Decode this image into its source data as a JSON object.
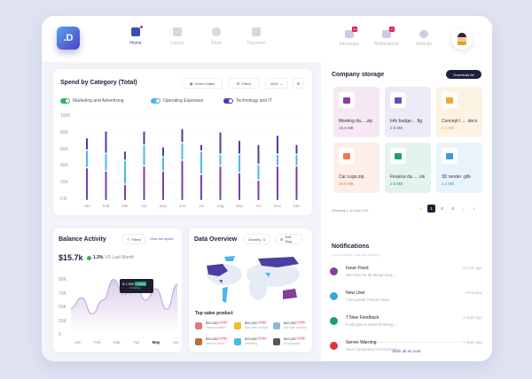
{
  "app": {
    "logo": ".D"
  },
  "nav": [
    {
      "label": "Home",
      "active": true
    },
    {
      "label": "Layout"
    },
    {
      "label": "Chart"
    },
    {
      "label": "Payment"
    }
  ],
  "right_nav": [
    {
      "label": "Messages",
      "badge": "10"
    },
    {
      "label": "Notifications",
      "badge": "2"
    },
    {
      "label": "Settings"
    }
  ],
  "spend": {
    "title": "Spend by Category (Total)",
    "select_dates": "Select Dates",
    "filters": "Filters",
    "year": "2026"
  },
  "chart_data": {
    "type": "bar",
    "title": "Spend by Category (Total)",
    "categories": [
      "Jan",
      "Feb",
      "Mar",
      "Apr",
      "May",
      "Jun",
      "Jul",
      "Aug",
      "Sep",
      "Act",
      "Nov",
      "Dec"
    ],
    "yticks": [
      "100K",
      "80K",
      "60K",
      "40K",
      "20K",
      "0 K"
    ],
    "ylim": [
      0,
      100
    ],
    "series": [
      {
        "name": "Marketing and Advertising",
        "color": "#7a3ea8",
        "legend_color": "#2fb35a",
        "values": [
          38,
          34,
          18,
          40,
          34,
          47,
          30,
          40,
          32,
          23,
          40,
          40
        ]
      },
      {
        "name": "Operating Expenses",
        "color": "#4ab8e8",
        "legend_color": "#4ab8e8",
        "values": [
          21,
          21,
          29,
          25,
          17,
          21,
          28,
          14,
          22,
          19,
          14,
          14
        ]
      },
      {
        "name": "Technology and IT",
        "color": "#4b3fa3",
        "legend_color": "#4b3fa3",
        "values": [
          15,
          27,
          11,
          17,
          12,
          17,
          8,
          27,
          17,
          24,
          23,
          12
        ]
      }
    ]
  },
  "balance": {
    "title": "Balance Activity",
    "filters": "Filters",
    "report": "View full report",
    "value": "$15.7k",
    "change": "1.3%",
    "compare": "VS Last Month",
    "tooltip_value": "$ 1,500",
    "tooltip_tag": "+12%",
    "tooltip_sub": "profit/day",
    "yticks": [
      "90K",
      "70K",
      "60K",
      "50K",
      "0"
    ],
    "xticks": [
      "Jan",
      "Feb",
      "Mar",
      "Apr",
      "May",
      "Jun"
    ],
    "active_month": "May",
    "line_values": [
      63,
      72,
      58,
      70,
      88,
      75,
      86,
      70,
      80,
      62,
      84
    ]
  },
  "overview": {
    "title": "Data Overview",
    "period": "Monthly",
    "edit": "Edit Map",
    "top_title": "Top sales product",
    "products": [
      {
        "value": "$10,000",
        "tag": "+1.3%",
        "name": "Transportation",
        "color": "#e07b7b"
      },
      {
        "value": "$10,000",
        "tag": "+1.3%",
        "name": "Star sale product",
        "color": "#f5b82e"
      },
      {
        "value": "$10,000",
        "tag": "+1.3%",
        "name": "Car sale product",
        "color": "#8fb6d8"
      },
      {
        "value": "$10,000",
        "tag": "+1.3%",
        "name": "Delivery boys",
        "color": "#b8703a"
      },
      {
        "value": "$10,000",
        "tag": "+1.3%",
        "name": "Jewellery",
        "color": "#4ab8e8"
      },
      {
        "value": "$10,000",
        "tag": "+1.3%",
        "name": "Sunglasses",
        "color": "#555"
      }
    ]
  },
  "storage": {
    "title": "Company storage",
    "download": "Download All",
    "showing": "Showing 1-10 from 100",
    "files": [
      {
        "name": "Meeting da... .zip",
        "size": "16.5 MB",
        "bg": "#f6e9f4",
        "accent": "#8a3e9e"
      },
      {
        "name": "Info budge... .fig",
        "size": "2.6 MB",
        "bg": "#eceaf6",
        "accent": "#5b52b8"
      },
      {
        "name": "Concept I ... .docx",
        "size": "4.4 MB",
        "bg": "#fdf3e4",
        "accent": "#f0a830"
      },
      {
        "name": "Car Logo.zip",
        "size": "16.5 MB",
        "bg": "#fdeeea",
        "accent": "#f0784a"
      },
      {
        "name": "Finance da ... .xls",
        "size": "2.6 MB",
        "bg": "#e4f3ee",
        "accent": "#1f9e74"
      },
      {
        "name": "3D render .gifs",
        "size": "4.4 MB",
        "bg": "#e8f3fb",
        "accent": "#3d9ad8"
      }
    ],
    "pages": [
      "‹",
      "1",
      "2",
      "3",
      "...",
      "›"
    ]
  },
  "notifications": {
    "title": "Notifications",
    "subtitle": "Lorem Ipsum is simply dummy",
    "mark_all": "Mark all as read",
    "items": [
      {
        "title": "Issue Fixed",
        "desc": "We have fix all design bug ...",
        "time": "10 min ago",
        "color": "#8a3e9e"
      },
      {
        "title": "New User",
        "desc": "I feel great! Thanks team.",
        "time": "Yesterday",
        "color": "#3da4e0"
      },
      {
        "title": "7 New Feedback",
        "desc": "It will give a smart finishing ...",
        "time": "3 days ago",
        "color": "#1f9e74"
      },
      {
        "title": "Server Warning",
        "desc": "Your connection is not private",
        "time": "7 days ago",
        "color": "#e0343e"
      }
    ]
  }
}
